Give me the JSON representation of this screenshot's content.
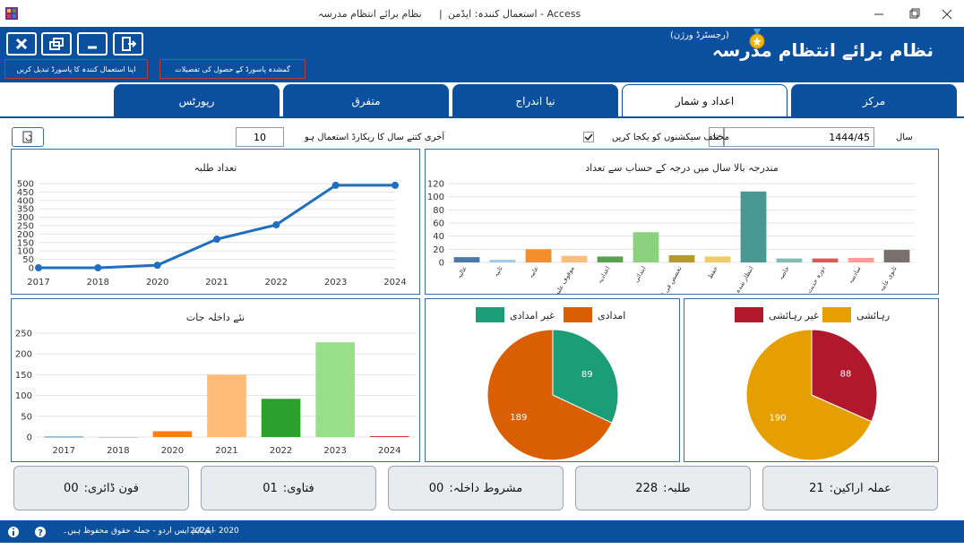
{
  "window": {
    "title": "نظام برائے انتظام مدرسہ",
    "separator": "|",
    "user": "استعمال کنندہ: ایڈمن - Access"
  },
  "header": {
    "app_title": "نظام برائے انتظام مدرسہ",
    "edition": "(رجسٹرڈ ورژن)",
    "change_password": "اپنا استعمال کنندہ کا پاسورڈ تبدیل کریں",
    "lost_password": "گمشدہ پاسورڈ کے حصول کی تفصیلات"
  },
  "tabs": [
    "مرکز",
    "اعداد و شمار",
    "نیا اندراج",
    "متفرق",
    "رپورٹس"
  ],
  "controls": {
    "year_label": "سال",
    "year_value": "1444/45",
    "merge_label": "مختلف سیکشنوں کو یکجا کریں",
    "years_label": "آخری کتنے سال کا ریکارڈ استعمال ہو",
    "years_value": "10"
  },
  "chart_data": [
    {
      "type": "line",
      "title": "تعداد طلبہ",
      "color": "#1f6fbf",
      "categories": [
        "2017",
        "2018",
        "2020",
        "2021",
        "2022",
        "2023",
        "2024"
      ],
      "values": [
        0,
        0,
        15,
        170,
        255,
        490,
        490
      ],
      "ylim": [
        0,
        500
      ],
      "yticks": [
        0,
        50,
        100,
        150,
        200,
        250,
        300,
        350,
        400,
        450,
        500
      ],
      "grid": true
    },
    {
      "type": "bar",
      "title": "مندرجہ بالا سال میں درجہ کے حساب سے تعداد",
      "categories": [
        "عالیہ",
        "ثانیہ",
        "عامہ",
        "موقوف علیہ",
        "اعدادیہ",
        "ابتدائی",
        "تخصص فی الفقہ",
        "حفظ",
        "انتظار شدہ",
        "خاصہ",
        "دورہ حدیث شریف",
        "سادسہ",
        "ثانوی عامہ"
      ],
      "values": [
        8,
        4,
        20,
        10,
        9,
        46,
        11,
        9,
        108,
        6,
        6,
        7,
        19
      ],
      "colors": [
        "#4e79a7",
        "#a0cbe8",
        "#f28e2b",
        "#ffbe7d",
        "#59a14f",
        "#8cd17d",
        "#b6992d",
        "#f1ce63",
        "#499894",
        "#86bcb6",
        "#e15759",
        "#ff9d9a",
        "#79706e"
      ],
      "ylim": [
        0,
        120
      ],
      "yticks": [
        0,
        20,
        40,
        60,
        80,
        100,
        120
      ],
      "grid": true
    },
    {
      "type": "bar",
      "title": "نئے داخلہ جات",
      "categories": [
        "2017",
        "2018",
        "2020",
        "2021",
        "2022",
        "2023",
        "2024"
      ],
      "values": [
        1,
        0,
        14,
        150,
        92,
        228,
        2
      ],
      "colors": [
        "#1f77b4",
        "#aec7e8",
        "#ff7f0e",
        "#ffbb78",
        "#2ca02c",
        "#98df8a",
        "#d62728"
      ],
      "ylim": [
        0,
        250
      ],
      "yticks": [
        0,
        50,
        100,
        150,
        200,
        250
      ],
      "grid": true
    },
    {
      "type": "pie",
      "categories": [
        "امدادی",
        "غیر امدادی"
      ],
      "values": [
        189,
        89
      ],
      "colors": [
        "#d95f02",
        "#1b9e77"
      ]
    },
    {
      "type": "pie",
      "categories": [
        "رہائشی",
        "غیر رہائشی"
      ],
      "values": [
        190,
        88
      ],
      "colors": [
        "#e69f00",
        "#b2182b"
      ]
    }
  ],
  "stats": [
    {
      "label": "عملہ اراکین:",
      "value": "21"
    },
    {
      "label": "طلبہ:",
      "value": "228"
    },
    {
      "label": "مشروط داخلہ:",
      "value": "00"
    },
    {
      "label": "فتاوی:",
      "value": "01"
    },
    {
      "label": "فون ڈائری:",
      "value": "00"
    }
  ],
  "footer": {
    "copyright": "ایم ایم ایس اردو - جملہ حقوق محفوظ ہیں۔",
    "years": "2024 - 2020"
  }
}
